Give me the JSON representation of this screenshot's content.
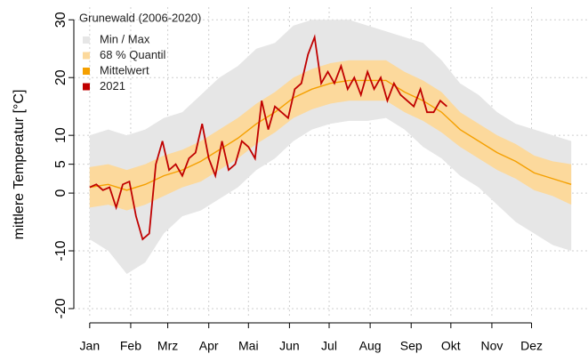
{
  "chart_data": {
    "type": "line",
    "legend_title": "Grunewald (2006-2020)",
    "y_label": "mittlere Temperatur [°C]",
    "xlim": [
      -11,
      377
    ],
    "ylim": [
      -21.7,
      32.2
    ],
    "xticks": [
      {
        "value": 1,
        "label": "Jan"
      },
      {
        "value": 32,
        "label": "Feb"
      },
      {
        "value": 60,
        "label": "Mrz"
      },
      {
        "value": 91,
        "label": "Apr"
      },
      {
        "value": 121,
        "label": "Mai"
      },
      {
        "value": 152,
        "label": "Jun"
      },
      {
        "value": 182,
        "label": "Jul"
      },
      {
        "value": 213,
        "label": "Aug"
      },
      {
        "value": 244,
        "label": "Sep"
      },
      {
        "value": 274,
        "label": "Okt"
      },
      {
        "value": 305,
        "label": "Nov"
      },
      {
        "value": 335,
        "label": "Dez"
      }
    ],
    "yticks": [
      -20,
      -10,
      0,
      5,
      10,
      20,
      30
    ],
    "grid": true,
    "legend": "top-left",
    "series": [
      {
        "name": "Min / Max",
        "type": "band",
        "color": "#e6e6e6",
        "x": [
          1,
          15,
          29,
          43,
          57,
          71,
          85,
          99,
          113,
          127,
          141,
          155,
          169,
          183,
          197,
          211,
          225,
          239,
          253,
          267,
          281,
          295,
          309,
          323,
          337,
          351,
          365
        ],
        "low": [
          -8,
          -10,
          -14,
          -12,
          -7,
          -4,
          -3,
          -1,
          1,
          4,
          6,
          9,
          11,
          12,
          12.5,
          12.5,
          13,
          11,
          8,
          6,
          3,
          1,
          -2,
          -5,
          -7,
          -9,
          -10
        ],
        "high": [
          10,
          11,
          10,
          11,
          13,
          14,
          17,
          20,
          22,
          25,
          26,
          29,
          30,
          30,
          30,
          29,
          28,
          27,
          26,
          23,
          19,
          17,
          14,
          12,
          11,
          10,
          9
        ]
      },
      {
        "name": "68 % Quantil",
        "type": "band",
        "color": "#fcd99c",
        "x": [
          1,
          15,
          29,
          43,
          57,
          71,
          85,
          99,
          113,
          127,
          141,
          155,
          169,
          183,
          197,
          211,
          225,
          239,
          253,
          267,
          281,
          295,
          309,
          323,
          337,
          351,
          365
        ],
        "low": [
          -2.5,
          -2,
          -3,
          -2,
          -0.5,
          1,
          2,
          4,
          6,
          8.5,
          10.5,
          13,
          14.5,
          15.5,
          16,
          16,
          16,
          14,
          12.5,
          10.5,
          8,
          6,
          4,
          2.5,
          0.5,
          -0.5,
          -2
        ],
        "high": [
          4.5,
          5,
          4,
          5,
          6.5,
          7.5,
          9,
          11,
          13,
          15.5,
          17.5,
          20,
          21.5,
          22.5,
          23,
          23,
          23,
          21,
          19.5,
          17.5,
          14,
          12,
          10,
          8.5,
          6.5,
          5.5,
          5
        ]
      },
      {
        "name": "Mittelwert",
        "type": "line",
        "color": "#f5a000",
        "x": [
          1,
          15,
          29,
          43,
          57,
          71,
          85,
          99,
          113,
          127,
          141,
          155,
          169,
          183,
          197,
          211,
          225,
          239,
          253,
          267,
          281,
          295,
          309,
          323,
          337,
          351,
          365
        ],
        "values": [
          1,
          1.5,
          0.5,
          1.5,
          3,
          4,
          5.5,
          7.5,
          9.5,
          12,
          14,
          16.5,
          18,
          19,
          19.5,
          19.5,
          19.5,
          17.5,
          16,
          14,
          11,
          9,
          7,
          5.5,
          3.5,
          2.5,
          1.5
        ]
      },
      {
        "name": "2021",
        "type": "line",
        "color": "#c00000",
        "x": [
          1,
          6,
          11,
          16,
          21,
          26,
          31,
          36,
          41,
          46,
          51,
          56,
          61,
          66,
          71,
          76,
          81,
          86,
          91,
          96,
          101,
          106,
          111,
          116,
          121,
          126,
          131,
          136,
          141,
          146,
          151,
          156,
          161,
          166,
          171,
          176,
          181,
          186,
          191,
          196,
          201,
          206,
          211,
          216,
          221,
          226,
          231,
          236,
          241,
          246,
          251,
          256,
          261,
          266,
          271
        ],
        "values": [
          1,
          1.5,
          0.5,
          1,
          -2.5,
          1.5,
          2,
          -4,
          -8,
          -7,
          5,
          9,
          4,
          5,
          3,
          6,
          7,
          12,
          6,
          3,
          9,
          4,
          5,
          9,
          8,
          6,
          16,
          11,
          15,
          14,
          13,
          18,
          19,
          24,
          27,
          19,
          21,
          19,
          22,
          18,
          20,
          17,
          21,
          18,
          20,
          16,
          19,
          17,
          16,
          15,
          18,
          14,
          14,
          16,
          15
        ]
      }
    ]
  }
}
